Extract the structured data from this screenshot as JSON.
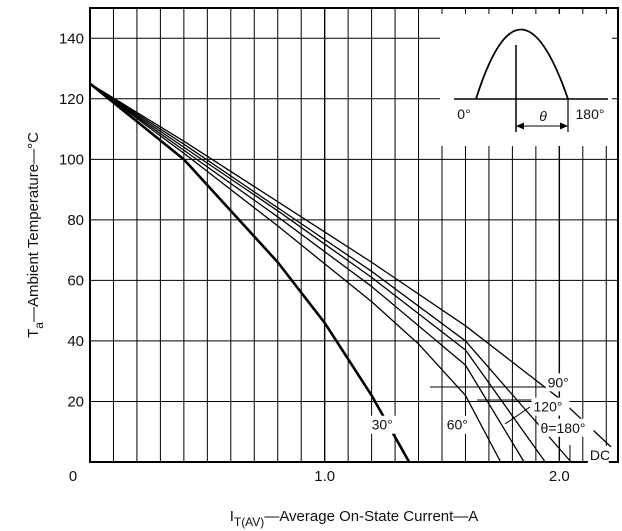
{
  "chart_data": {
    "type": "line",
    "title": "",
    "xlabel": {
      "main": "I",
      "sub": "T(AV)",
      "rest": "—Average On-State Current—A"
    },
    "ylabel": {
      "main": "T",
      "sub": "a",
      "rest": "—Ambient Temperature—°C"
    },
    "xlim": [
      0,
      2.25
    ],
    "ylim": [
      0,
      150
    ],
    "grid": true,
    "xticks": [
      {
        "value": 0,
        "label": "0"
      },
      {
        "value": 1.0,
        "label": "1.0"
      },
      {
        "value": 2.0,
        "label": "2.0"
      }
    ],
    "yticks": [
      {
        "value": 20,
        "label": "20"
      },
      {
        "value": 40,
        "label": "40"
      },
      {
        "value": 60,
        "label": "60"
      },
      {
        "value": 80,
        "label": "80"
      },
      {
        "value": 100,
        "label": "100"
      },
      {
        "value": 120,
        "label": "120"
      },
      {
        "value": 140,
        "label": "140"
      }
    ],
    "series": [
      {
        "name": "30°",
        "x": [
          0,
          0.4,
          0.8,
          1.0,
          1.2,
          1.36
        ],
        "y": [
          125,
          100,
          66,
          46,
          22,
          0
        ],
        "width": 2.6
      },
      {
        "name": "60°",
        "x": [
          0,
          0.4,
          0.8,
          1.2,
          1.4,
          1.6,
          1.75
        ],
        "y": [
          125,
          102,
          78,
          53,
          39,
          22,
          0
        ],
        "width": 1.3
      },
      {
        "name": "90°",
        "x": [
          0,
          0.4,
          0.8,
          1.2,
          1.6,
          1.85
        ],
        "y": [
          125,
          103,
          81,
          58,
          32,
          0
        ],
        "width": 1.3
      },
      {
        "name": "120°",
        "x": [
          0,
          0.4,
          0.8,
          1.2,
          1.6,
          1.94
        ],
        "y": [
          125,
          104,
          83,
          61,
          37,
          0
        ],
        "width": 1.3
      },
      {
        "name": "θ=180°",
        "x": [
          0,
          0.4,
          0.8,
          1.2,
          1.6,
          2.05
        ],
        "y": [
          125,
          105,
          84,
          63,
          40,
          0
        ],
        "width": 1.3
      },
      {
        "name": "DC",
        "x": [
          0,
          0.4,
          0.8,
          1.2,
          1.6,
          2.0,
          2.22
        ],
        "y": [
          125,
          106,
          86,
          66,
          45,
          21,
          5
        ],
        "width": 1.3
      }
    ],
    "annotations": [
      {
        "text": "30°",
        "x": 1.2,
        "y": 10
      },
      {
        "text": "60°",
        "x": 1.52,
        "y": 10
      },
      {
        "text": "90°",
        "x": 1.95,
        "y": 24
      },
      {
        "text": "120°",
        "x": 1.89,
        "y": 16
      },
      {
        "text": "θ=180°",
        "x": 1.92,
        "y": 9
      },
      {
        "text": "DC",
        "x": 2.13,
        "y": 0
      }
    ],
    "inset": {
      "labels": {
        "start": "0°",
        "end": "180°",
        "theta": "θ"
      }
    }
  }
}
